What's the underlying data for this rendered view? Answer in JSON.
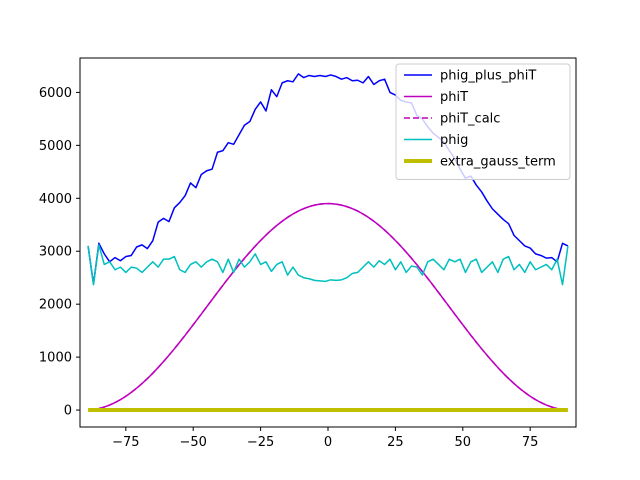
{
  "chart_data": {
    "type": "line",
    "title": "",
    "xlabel": "",
    "ylabel": "",
    "xlim": [
      -92,
      92
    ],
    "ylim": [
      -320,
      6650
    ],
    "xticks": [
      -75,
      -50,
      -25,
      0,
      25,
      50,
      75
    ],
    "yticks": [
      0,
      1000,
      2000,
      3000,
      4000,
      5000,
      6000
    ],
    "grid": false,
    "legend_position": "upper right",
    "series": [
      {
        "name": "phig_plus_phiT",
        "color": "#0000ff",
        "style": "solid",
        "x": [
          -89,
          -87,
          -85,
          -83,
          -81,
          -79,
          -77,
          -75,
          -73,
          -71,
          -69,
          -67,
          -65,
          -63,
          -61,
          -59,
          -57,
          -55,
          -53,
          -51,
          -49,
          -47,
          -45,
          -43,
          -41,
          -39,
          -37,
          -35,
          -33,
          -31,
          -29,
          -27,
          -25,
          -23,
          -21,
          -19,
          -17,
          -15,
          -13,
          -11,
          -9,
          -7,
          -5,
          -3,
          -1,
          1,
          3,
          5,
          7,
          9,
          11,
          13,
          15,
          17,
          19,
          21,
          23,
          25,
          27,
          29,
          31,
          33,
          35,
          37,
          39,
          41,
          43,
          45,
          47,
          49,
          51,
          53,
          55,
          57,
          59,
          61,
          63,
          65,
          67,
          69,
          71,
          73,
          75,
          77,
          79,
          81,
          83,
          85,
          87,
          89
        ],
        "y": [
          3100,
          2380,
          3150,
          2950,
          2800,
          2880,
          2820,
          2900,
          2920,
          3080,
          3120,
          3050,
          3200,
          3550,
          3620,
          3560,
          3820,
          3920,
          4050,
          4290,
          4200,
          4450,
          4520,
          4550,
          4870,
          4900,
          5050,
          5020,
          5200,
          5380,
          5450,
          5680,
          5820,
          5650,
          6050,
          5920,
          6180,
          6220,
          6200,
          6350,
          6280,
          6320,
          6300,
          6320,
          6300,
          6330,
          6300,
          6250,
          6280,
          6220,
          6230,
          6180,
          6300,
          6150,
          6220,
          6250,
          6000,
          5950,
          5850,
          5820,
          5800,
          5560,
          5500,
          5350,
          5230,
          5150,
          5060,
          4900,
          4750,
          4550,
          4380,
          4420,
          4250,
          4120,
          3950,
          3800,
          3700,
          3600,
          3520,
          3300,
          3200,
          3100,
          3060,
          2950,
          2920,
          2870,
          2880,
          2800,
          3150,
          3100
        ]
      },
      {
        "name": "phiT",
        "color": "#bf00bf",
        "style": "solid",
        "function": "3900*cos(x deg)^2",
        "x_range": [
          -85,
          85
        ]
      },
      {
        "name": "phiT_calc",
        "color": "#bf00bf",
        "style": "dashed",
        "function": "3900*cos(x deg)^2",
        "x_range": [
          -85,
          85
        ]
      },
      {
        "name": "phig",
        "color": "#00bfbf",
        "style": "solid",
        "x": [
          -89,
          -87,
          -85,
          -83,
          -81,
          -79,
          -77,
          -75,
          -73,
          -71,
          -69,
          -67,
          -65,
          -63,
          -61,
          -59,
          -57,
          -55,
          -53,
          -51,
          -49,
          -47,
          -45,
          -43,
          -41,
          -39,
          -37,
          -35,
          -33,
          -31,
          -29,
          -27,
          -25,
          -23,
          -21,
          -19,
          -17,
          -15,
          -13,
          -11,
          -9,
          -7,
          -5,
          -3,
          -1,
          1,
          3,
          5,
          7,
          9,
          11,
          13,
          15,
          17,
          19,
          21,
          23,
          25,
          27,
          29,
          31,
          33,
          35,
          37,
          39,
          41,
          43,
          45,
          47,
          49,
          51,
          53,
          55,
          57,
          59,
          61,
          63,
          65,
          67,
          69,
          71,
          73,
          75,
          77,
          79,
          81,
          83,
          85,
          87,
          89
        ],
        "y": [
          3100,
          2370,
          3120,
          2750,
          2800,
          2650,
          2700,
          2600,
          2700,
          2680,
          2600,
          2700,
          2800,
          2700,
          2850,
          2850,
          2900,
          2650,
          2600,
          2750,
          2800,
          2700,
          2800,
          2850,
          2800,
          2600,
          2850,
          2600,
          2850,
          2700,
          2800,
          2950,
          2750,
          2800,
          2620,
          2750,
          2800,
          2550,
          2700,
          2550,
          2500,
          2480,
          2450,
          2440,
          2430,
          2460,
          2450,
          2460,
          2500,
          2580,
          2600,
          2700,
          2800,
          2700,
          2820,
          2750,
          2850,
          2650,
          2800,
          2600,
          2720,
          2700,
          2550,
          2800,
          2850,
          2750,
          2650,
          2850,
          2800,
          2850,
          2600,
          2800,
          2850,
          2600,
          2700,
          2800,
          2600,
          2850,
          2900,
          2650,
          2750,
          2600,
          2800,
          2650,
          2700,
          2750,
          2650,
          2850,
          2370,
          3100
        ]
      },
      {
        "name": "extra_gauss_term",
        "color": "#bfbf00",
        "style": "thick",
        "x": [
          -89,
          89
        ],
        "y": [
          0,
          0
        ]
      }
    ]
  }
}
